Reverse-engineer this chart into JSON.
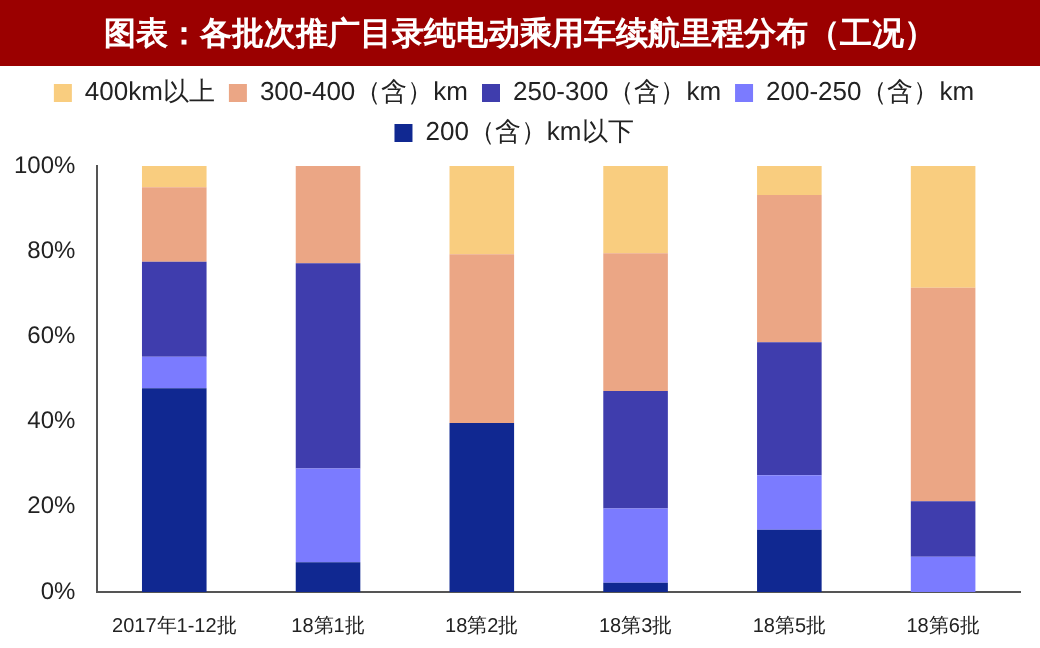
{
  "chart_data": {
    "type": "bar",
    "stacked": true,
    "title": "图表：各批次推广目录纯电动乘用车续航里程分布（工况）",
    "categories": [
      "2017年1-12批",
      "18第1批",
      "18第2批",
      "18第3批",
      "18第5批",
      "18第6批"
    ],
    "series": [
      {
        "name": "200（含）km以下",
        "color": "#102891",
        "values": [
          47.8,
          7.0,
          39.7,
          2.2,
          14.6,
          0
        ]
      },
      {
        "name": "200-250（含）km",
        "color": "#7b7bff",
        "values": [
          7.4,
          22.0,
          0,
          17.4,
          12.8,
          8.3
        ]
      },
      {
        "name": "250-300（含）km",
        "color": "#3f3dad",
        "values": [
          22.3,
          48.2,
          0,
          27.6,
          31.2,
          13.0
        ]
      },
      {
        "name": "300-400（含）km",
        "color": "#eba685",
        "values": [
          17.5,
          22.8,
          39.6,
          32.3,
          34.6,
          50.1
        ]
      },
      {
        "name": "400km以上",
        "color": "#f9cd7f",
        "values": [
          5.0,
          0,
          20.7,
          20.5,
          6.8,
          28.6
        ]
      }
    ],
    "ylim": [
      0,
      100
    ],
    "yticks": [
      {
        "value": 0,
        "label": "0%"
      },
      {
        "value": 20,
        "label": "20%"
      },
      {
        "value": 40,
        "label": "40%"
      },
      {
        "value": 60,
        "label": "60%"
      },
      {
        "value": 80,
        "label": "80%"
      },
      {
        "value": 100,
        "label": "100%"
      }
    ],
    "grid": false,
    "legend": "top"
  }
}
